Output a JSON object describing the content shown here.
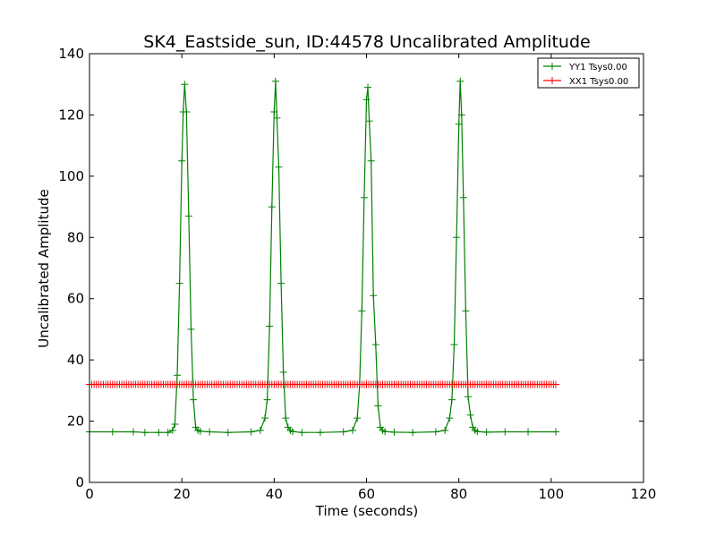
{
  "chart_data": {
    "type": "line",
    "title": "SK4_Eastside_sun, ID:44578 Uncalibrated Amplitude",
    "xlabel": "Time (seconds)",
    "ylabel": "Uncalibrated Amplitude",
    "xlim": [
      0,
      120
    ],
    "ylim": [
      0,
      140
    ],
    "x_ticks": [
      "0",
      "20",
      "40",
      "60",
      "80",
      "100",
      "120"
    ],
    "y_ticks": [
      "0",
      "20",
      "40",
      "60",
      "80",
      "100",
      "120",
      "140"
    ],
    "grid": false,
    "legend_position": "top-right",
    "series": [
      {
        "name": "YY1 Tsys0.00",
        "color": "#008000",
        "marker": "+",
        "x": [
          0,
          5,
          9.5,
          12,
          15,
          17,
          18,
          18.5,
          19,
          19.5,
          20,
          20.3,
          20.6,
          21,
          21.5,
          22,
          22.5,
          23,
          23.5,
          24,
          26,
          30,
          35,
          37,
          38,
          38.5,
          39,
          39.5,
          40,
          40.3,
          40.6,
          41,
          41.5,
          42,
          42.5,
          43,
          43.5,
          44,
          46,
          50,
          55,
          57,
          58,
          58.5,
          59,
          59.5,
          60,
          60.3,
          60.6,
          61,
          61.5,
          62,
          62.5,
          63,
          63.5,
          64,
          66,
          70,
          75,
          77,
          78,
          78.5,
          79,
          79.5,
          80,
          80.3,
          80.6,
          81,
          81.5,
          82,
          82.5,
          83,
          83.5,
          84,
          86,
          90,
          95,
          101
        ],
        "y": [
          16.5,
          16.5,
          16.5,
          16.3,
          16.3,
          16.3,
          17,
          19,
          35,
          65,
          105,
          121,
          130,
          121,
          87,
          50,
          27,
          18,
          17,
          16.7,
          16.5,
          16.3,
          16.5,
          17,
          21,
          27,
          51,
          90,
          121,
          131,
          119,
          103,
          65,
          36,
          21,
          18,
          17,
          16.6,
          16.3,
          16.3,
          16.5,
          17,
          21,
          32,
          56,
          93,
          125,
          129,
          118,
          105,
          61,
          45,
          25,
          18,
          17,
          16.6,
          16.4,
          16.3,
          16.5,
          17,
          21,
          27,
          45,
          80,
          117,
          131,
          120,
          93,
          56,
          28,
          22,
          18,
          17,
          16.6,
          16.4,
          16.5,
          16.5,
          16.5
        ]
      },
      {
        "name": "XX1 Tsys0.00",
        "color": "#ff0000",
        "marker": "+",
        "x": [
          0,
          101
        ],
        "y": [
          32,
          32
        ]
      }
    ]
  }
}
